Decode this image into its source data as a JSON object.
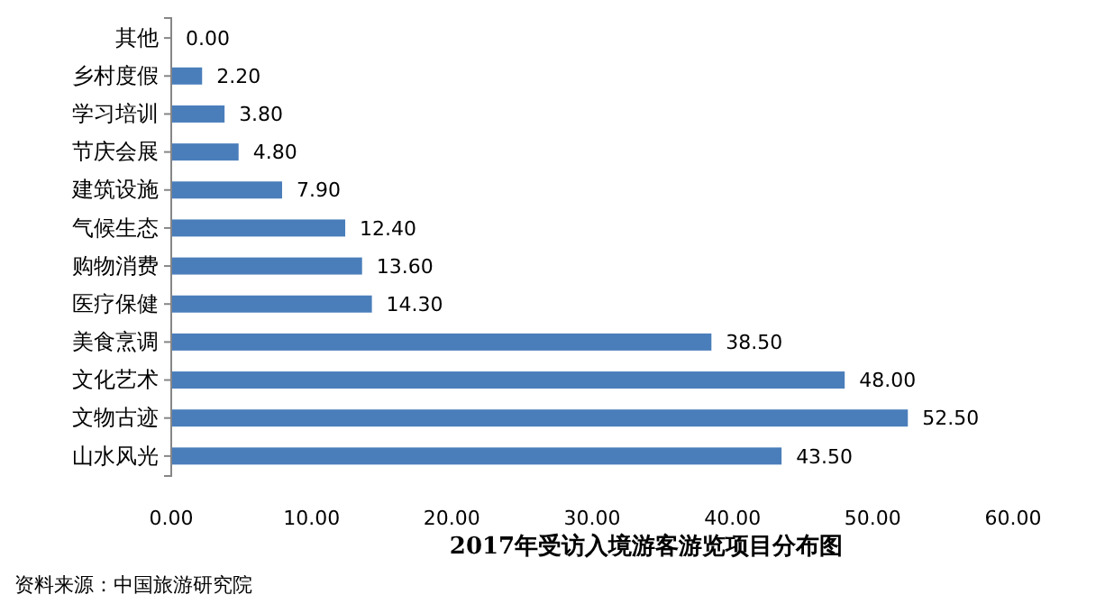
{
  "chart_data": {
    "type": "bar",
    "orientation": "horizontal",
    "title": "2017年受访入境游客游览项目分布图",
    "categories": [
      "其他",
      "乡村度假",
      "学习培训",
      "节庆会展",
      "建筑设施",
      "气候生态",
      "购物消费",
      "医疗保健",
      "美食烹调",
      "文化艺术",
      "文物古迹",
      "山水风光"
    ],
    "values": [
      0,
      2.2,
      3.8,
      4.8,
      7.9,
      12.4,
      13.6,
      14.3,
      38.5,
      48,
      52.5,
      43.5
    ],
    "value_labels": [
      "0.00",
      "2.20",
      "3.80",
      "4.80",
      "7.90",
      "12.40",
      "13.60",
      "14.30",
      "38.50",
      "48.00",
      "52.50",
      "43.50"
    ],
    "color": "#4a7ebb",
    "xlim": [
      0,
      60
    ],
    "xticks": [
      {
        "value": 0,
        "label": "0.00"
      },
      {
        "value": 10,
        "label": "10.00"
      },
      {
        "value": 20,
        "label": "20.00"
      },
      {
        "value": 30,
        "label": "30.00"
      },
      {
        "value": 40,
        "label": "40.00"
      },
      {
        "value": 50,
        "label": "50.00"
      },
      {
        "value": 60,
        "label": "60.00"
      }
    ],
    "grid": false,
    "annotations": [
      "资料来源：中国旅游研究院"
    ]
  }
}
